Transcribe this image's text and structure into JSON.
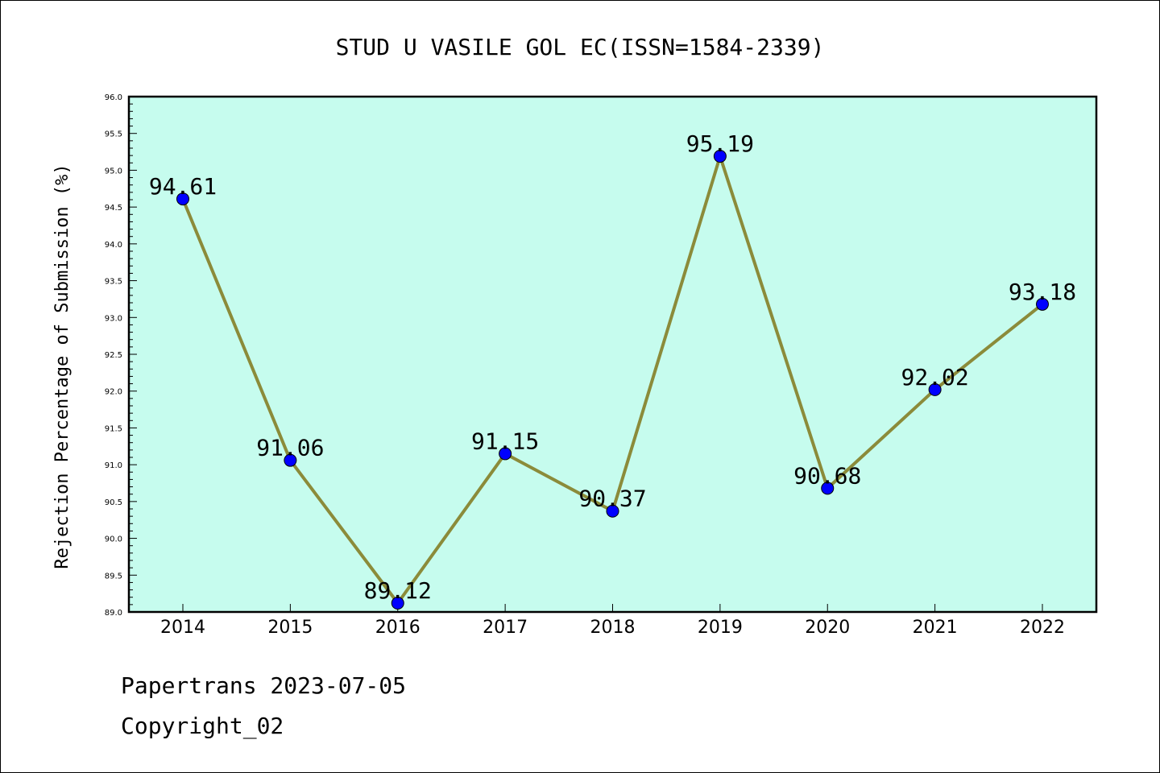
{
  "chart_data": {
    "type": "line",
    "title": "STUD U VASILE GOL EC(ISSN=1584-2339)",
    "xlabel": "",
    "ylabel": "Rejection Percentage of Submission (%)",
    "categories": [
      "2014",
      "2015",
      "2016",
      "2017",
      "2018",
      "2019",
      "2020",
      "2021",
      "2022"
    ],
    "values": [
      94.61,
      91.06,
      89.12,
      91.15,
      90.37,
      95.19,
      90.68,
      92.02,
      93.18
    ],
    "data_labels": [
      "94.61",
      "91.06",
      "89.12",
      "91.15",
      "90.37",
      "95.19",
      "90.68",
      "92.02",
      "93.18"
    ],
    "ylim": [
      89.0,
      96.0
    ],
    "yticks": [
      "89.0",
      "89.5",
      "90.0",
      "90.5",
      "91.0",
      "91.5",
      "92.0",
      "92.5",
      "93.0",
      "93.5",
      "94.0",
      "94.5",
      "95.0",
      "95.5",
      "96.0"
    ],
    "grid": false,
    "colors": {
      "plot_background": "#c6fcee",
      "line": "#8b8b3a",
      "marker": "#0000ff"
    }
  },
  "footer": {
    "line1": "Papertrans 2023-07-05",
    "line2": "Copyright_02"
  }
}
